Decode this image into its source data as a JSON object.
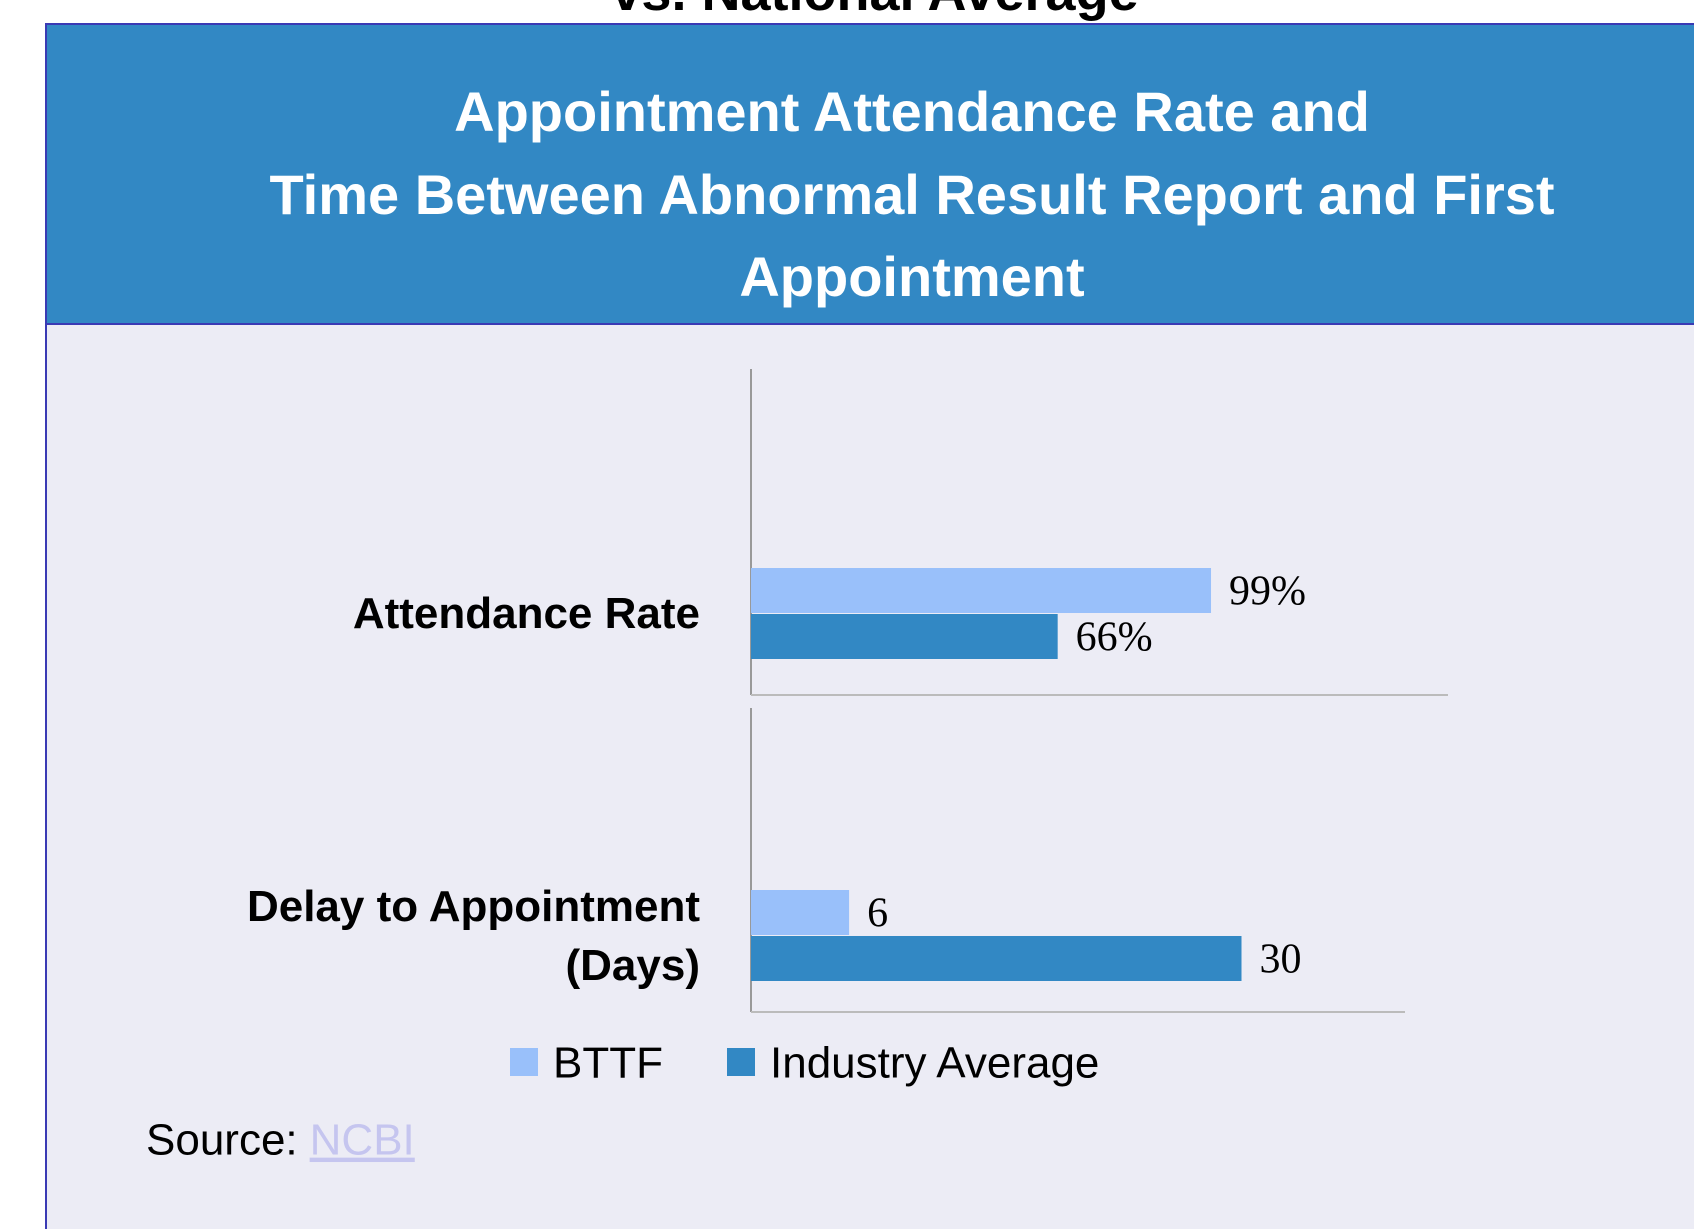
{
  "slide_title": "vs. National Average",
  "header": {
    "title": [
      "Appointment Attendance Rate and",
      "Time Between Abnormal Result Report and First",
      "Appointment"
    ]
  },
  "chart_data": [
    {
      "type": "bar",
      "orientation": "horizontal",
      "categories": [
        "Attendance Rate"
      ],
      "xlim": [
        0,
        150
      ],
      "series": [
        {
          "name": "BTTF",
          "color": "#99c0fa",
          "values": [
            99
          ],
          "value_labels": [
            "99%"
          ]
        },
        {
          "name": "Industry Average",
          "color": "#3288c4",
          "values": [
            66
          ],
          "value_labels": [
            "66%"
          ]
        }
      ],
      "legend": "bottom"
    },
    {
      "type": "bar",
      "orientation": "horizontal",
      "categories": [
        "Delay to Appointment (Days)"
      ],
      "xlim": [
        0,
        40
      ],
      "series": [
        {
          "color": "#99c0fa",
          "values": [
            6
          ]
        },
        {
          "color": "#3288c4",
          "values": [
            30
          ]
        }
      ]
    }
  ],
  "source": {
    "label": "Source:",
    "link": "NCBI"
  }
}
